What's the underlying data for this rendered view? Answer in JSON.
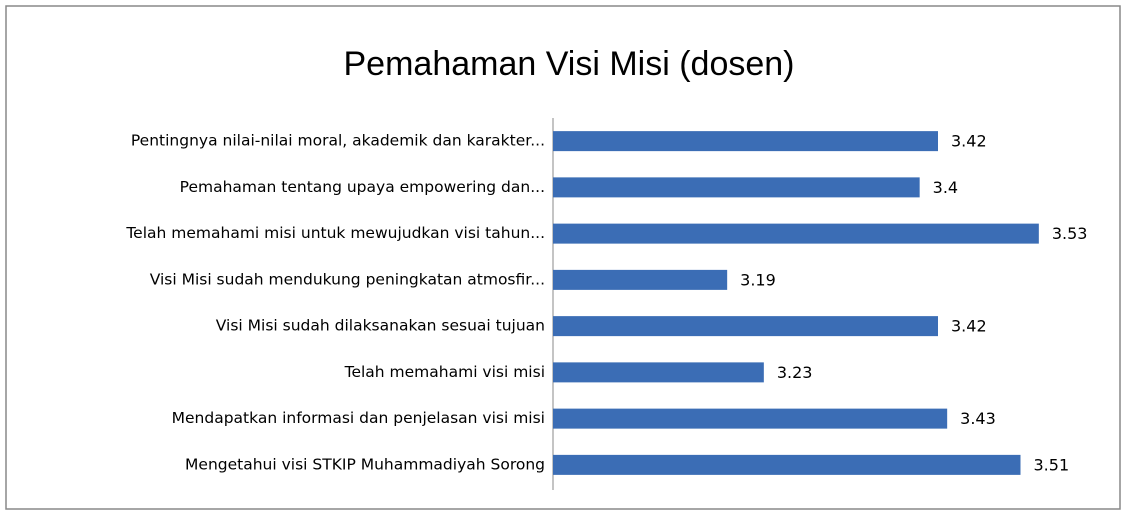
{
  "chart_data": {
    "type": "bar",
    "orientation": "horizontal",
    "title": "Pemahaman Visi Misi (dosen)",
    "categories": [
      "Pentingnya nilai-nilai moral, akademik dan karakter...",
      "Pemahaman tentang upaya empowering dan...",
      "Telah memahami misi untuk mewujudkan visi tahun...",
      "Visi Misi sudah mendukung peningkatan atmosfir...",
      "Visi Misi sudah dilaksanakan sesuai tujuan",
      "Telah memahami visi misi",
      "Mendapatkan informasi dan penjelasan visi misi",
      "Mengetahui visi STKIP Muhammadiyah Sorong"
    ],
    "values": [
      3.42,
      3.4,
      3.53,
      3.19,
      3.42,
      3.23,
      3.43,
      3.51
    ],
    "color": "#3b6db5",
    "xlim": [
      3,
      3.6
    ]
  }
}
